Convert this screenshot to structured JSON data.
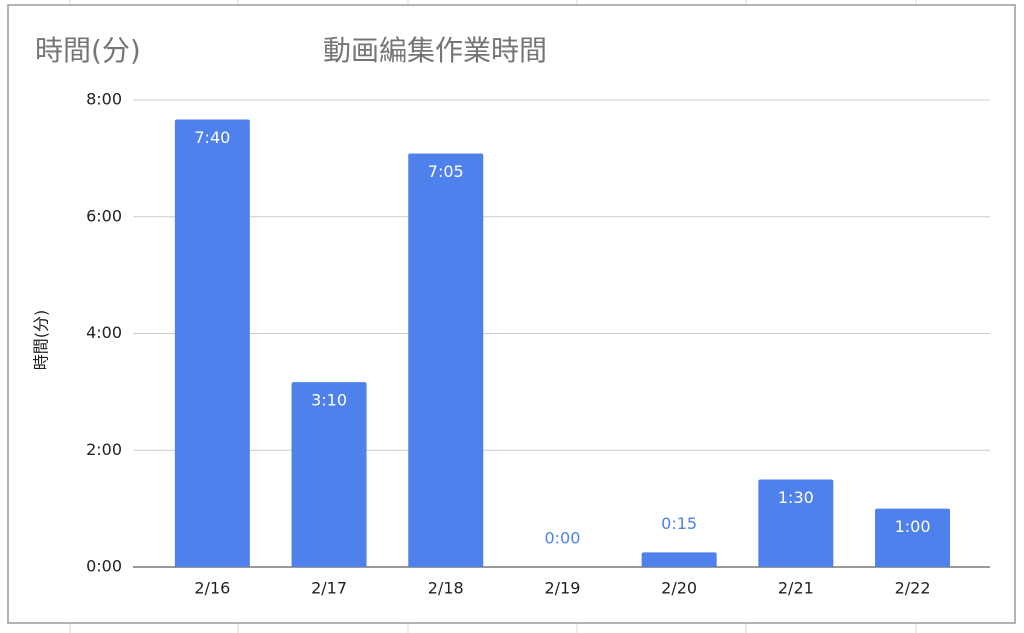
{
  "chart_data": {
    "type": "bar",
    "title": "動画編集作業時間",
    "y_label": "時間(分)",
    "categories": [
      "2/16",
      "2/17",
      "2/18",
      "2/19",
      "2/20",
      "2/21",
      "2/22"
    ],
    "values": [
      7.666666666666667,
      3.1666666666666665,
      7.083333333333333,
      0,
      0.25,
      1.5,
      1
    ],
    "value_labels": [
      "7:40",
      "3:10",
      "7:05",
      "0:00",
      "0:15",
      "1:30",
      "1:00"
    ],
    "color": "#4f81ec",
    "ylim": [
      0,
      8
    ],
    "yticks": [
      {
        "value": 0,
        "label": "0:00"
      },
      {
        "value": 2,
        "label": "2:00"
      },
      {
        "value": 4,
        "label": "4:00"
      },
      {
        "value": 6,
        "label": "6:00"
      },
      {
        "value": 8,
        "label": "8:00"
      }
    ],
    "grid": true
  }
}
